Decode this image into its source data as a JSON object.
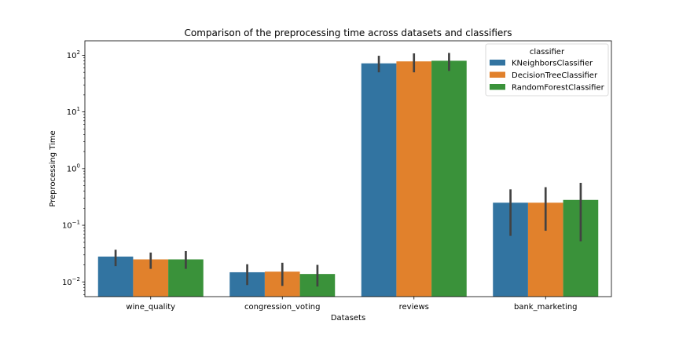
{
  "chart_data": {
    "type": "bar",
    "title": "Comparison of the preprocessing time across datasets and classifiers",
    "xlabel": "Datasets",
    "ylabel": "Preprocessing Time",
    "yscale": "log",
    "ylim": [
      0.0055,
      180
    ],
    "yticks": [
      {
        "value": 0.01,
        "base": "10",
        "exp": "−2"
      },
      {
        "value": 0.1,
        "base": "10",
        "exp": "−1"
      },
      {
        "value": 1,
        "base": "10",
        "exp": "0"
      },
      {
        "value": 10,
        "base": "10",
        "exp": "1"
      },
      {
        "value": 100,
        "base": "10",
        "exp": "2"
      }
    ],
    "categories": [
      "wine_quality",
      "congression_voting",
      "reviews",
      "bank_marketing"
    ],
    "legend": {
      "title": "classifier",
      "position": "top-right"
    },
    "grid": false,
    "series": [
      {
        "name": "KNeighborsClassifier",
        "color": "#3274a1",
        "values": [
          0.028,
          0.0148,
          72,
          0.25
        ],
        "error_low": [
          0.019,
          0.0088,
          50,
          0.065
        ],
        "error_high": [
          0.037,
          0.0205,
          98,
          0.43
        ]
      },
      {
        "name": "DecisionTreeClassifier",
        "color": "#e1812c",
        "values": [
          0.025,
          0.0152,
          78,
          0.25
        ],
        "error_low": [
          0.017,
          0.0085,
          50,
          0.08
        ],
        "error_high": [
          0.033,
          0.0218,
          108,
          0.47
        ]
      },
      {
        "name": "RandomForestClassifier",
        "color": "#3a923a",
        "values": [
          0.025,
          0.0138,
          80,
          0.28
        ],
        "error_low": [
          0.017,
          0.0083,
          53,
          0.052
        ],
        "error_high": [
          0.035,
          0.02,
          110,
          0.56
        ]
      }
    ]
  }
}
